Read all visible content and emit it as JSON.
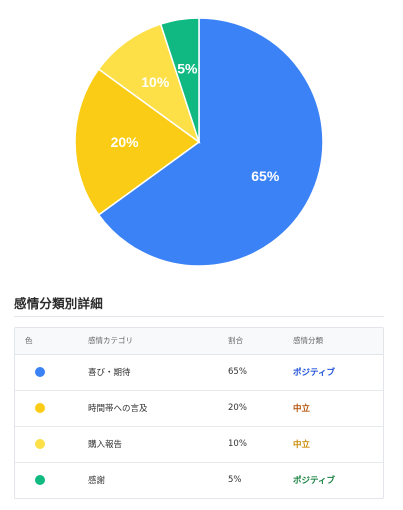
{
  "chart_data": {
    "type": "pie",
    "slices": [
      {
        "label": "喜び・期待",
        "value": 65,
        "display": "65%",
        "color": "#3b82f6"
      },
      {
        "label": "時間帯への言及",
        "value": 20,
        "display": "20%",
        "color": "#facc15"
      },
      {
        "label": "購入報告",
        "value": 10,
        "display": "10%",
        "color": "#fde047"
      },
      {
        "label": "感謝",
        "value": 5,
        "display": "5%",
        "color": "#10b981"
      }
    ],
    "start": "top",
    "direction": "clockwise",
    "legend": "none"
  },
  "section": {
    "title": "感情分類別詳細"
  },
  "table": {
    "headers": {
      "color": "色",
      "category": "感情カテゴリ",
      "percent": "割合",
      "classification": "感情分類"
    },
    "rows": [
      {
        "color": "#3b82f6",
        "category": "喜び・期待",
        "percent": "65%",
        "classification": "ポジティブ",
        "class_color": "#1d4ed8"
      },
      {
        "color": "#facc15",
        "category": "時間帯への言及",
        "percent": "20%",
        "classification": "中立",
        "class_color": "#b45309"
      },
      {
        "color": "#fde047",
        "category": "購入報告",
        "percent": "10%",
        "classification": "中立",
        "class_color": "#ca8a04"
      },
      {
        "color": "#10b981",
        "category": "感謝",
        "percent": "5%",
        "classification": "ポジティブ",
        "class_color": "#15803d"
      }
    ]
  }
}
